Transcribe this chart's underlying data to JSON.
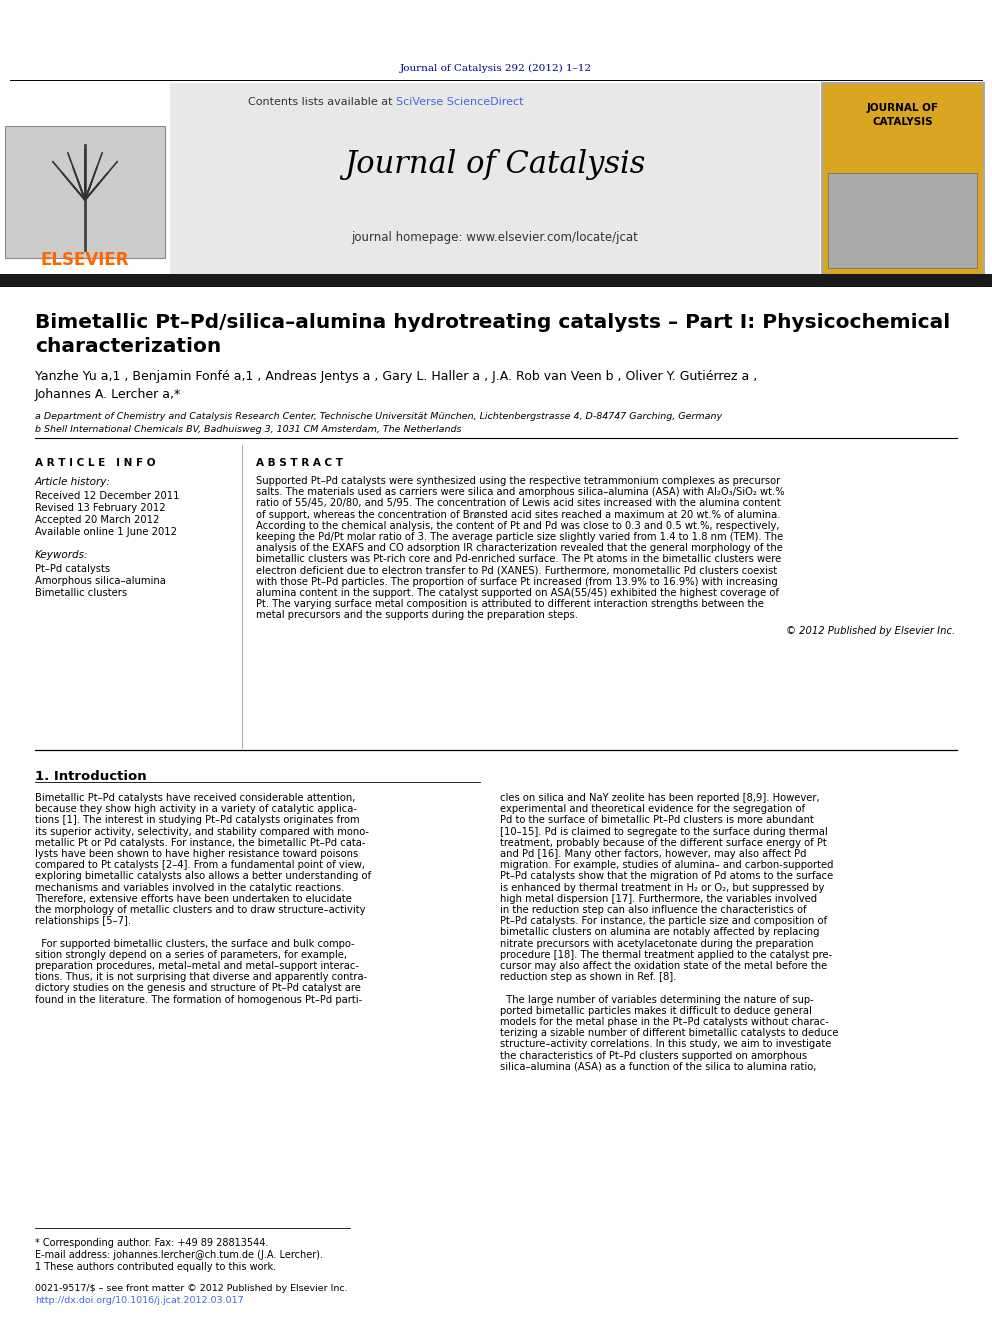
{
  "page_bg": "#ffffff",
  "top_journal_ref": "Journal of Catalysis 292 (2012) 1–12",
  "top_journal_ref_color": "#00008B",
  "header_bg": "#e8e8e8",
  "header_title": "Journal of Catalysis",
  "header_homepage": "journal homepage: www.elsevier.com/locate/jcat",
  "elsevier_color": "#FF6600",
  "sciverse_color": "#4169E1",
  "journal_cover_bg": "#DAA520",
  "black_bar_color": "#1a1a1a",
  "article_title": "Bimetallic Pt–Pd/silica–alumina hydrotreating catalysts – Part I: Physicochemical\ncharacterization",
  "authors_line1": "Yanzhe Yu a,1 , Benjamin Fonfé a,1 , Andreas Jentys a , Gary L. Haller a , J.A. Rob van Veen b , Oliver Y. Gutiérrez a ,",
  "authors_line2": "Johannes A. Lercher a,*",
  "affil_a": "a Department of Chemistry and Catalysis Research Center, Technische Universität München, Lichtenbergstrasse 4, D-84747 Garching, Germany",
  "affil_b": "b Shell International Chemicals BV, Badhuisweg 3, 1031 CM Amsterdam, The Netherlands",
  "article_info_title": "A R T I C L E   I N F O",
  "article_history_title": "Article history:",
  "received": "Received 12 December 2011",
  "revised": "Revised 13 February 2012",
  "accepted": "Accepted 20 March 2012",
  "available": "Available online 1 June 2012",
  "keywords_title": "Keywords:",
  "kw1": "Pt–Pd catalysts",
  "kw2": "Amorphous silica–alumina",
  "kw3": "Bimetallic clusters",
  "abstract_title": "A B S T R A C T",
  "abstract_lines": [
    "Supported Pt–Pd catalysts were synthesized using the respective tetrammonium complexes as precursor",
    "salts. The materials used as carriers were silica and amorphous silica–alumina (ASA) with Al₂O₃/SiO₂ wt.%",
    "ratio of 55/45, 20/80, and 5/95. The concentration of Lewis acid sites increased with the alumina content",
    "of support, whereas the concentration of Brønsted acid sites reached a maximum at 20 wt.% of alumina.",
    "According to the chemical analysis, the content of Pt and Pd was close to 0.3 and 0.5 wt.%, respectively,",
    "keeping the Pd/Pt molar ratio of 3. The average particle size slightly varied from 1.4 to 1.8 nm (TEM). The",
    "analysis of the EXAFS and CO adsorption IR characterization revealed that the general morphology of the",
    "bimetallic clusters was Pt-rich core and Pd-enriched surface. The Pt atoms in the bimetallic clusters were",
    "electron deficient due to electron transfer to Pd (XANES). Furthermore, monometallic Pd clusters coexist",
    "with those Pt–Pd particles. The proportion of surface Pt increased (from 13.9% to 16.9%) with increasing",
    "alumina content in the support. The catalyst supported on ASA(55/45) exhibited the highest coverage of",
    "Pt. The varying surface metal composition is attributed to different interaction strengths between the",
    "metal precursors and the supports during the preparation steps."
  ],
  "copyright": "© 2012 Published by Elsevier Inc.",
  "intro_title": "1. Introduction",
  "intro_col1": [
    "Bimetallic Pt–Pd catalysts have received considerable attention,",
    "because they show high activity in a variety of catalytic applica-",
    "tions [1]. The interest in studying Pt–Pd catalysts originates from",
    "its superior activity, selectivity, and stability compared with mono-",
    "metallic Pt or Pd catalysts. For instance, the bimetallic Pt–Pd cata-",
    "lysts have been shown to have higher resistance toward poisons",
    "compared to Pt catalysts [2–4]. From a fundamental point of view,",
    "exploring bimetallic catalysts also allows a better understanding of",
    "mechanisms and variables involved in the catalytic reactions.",
    "Therefore, extensive efforts have been undertaken to elucidate",
    "the morphology of metallic clusters and to draw structure–activity",
    "relationships [5–7].",
    "",
    "  For supported bimetallic clusters, the surface and bulk compo-",
    "sition strongly depend on a series of parameters, for example,",
    "preparation procedures, metal–metal and metal–support interac-",
    "tions. Thus, it is not surprising that diverse and apparently contra-",
    "dictory studies on the genesis and structure of Pt–Pd catalyst are",
    "found in the literature. The formation of homogenous Pt–Pd parti-"
  ],
  "intro_col2": [
    "cles on silica and NaY zeolite has been reported [8,9]. However,",
    "experimental and theoretical evidence for the segregation of",
    "Pd to the surface of bimetallic Pt–Pd clusters is more abundant",
    "[10–15]. Pd is claimed to segregate to the surface during thermal",
    "treatment, probably because of the different surface energy of Pt",
    "and Pd [16]. Many other factors, however, may also affect Pd",
    "migration. For example, studies of alumina– and carbon-supported",
    "Pt–Pd catalysts show that the migration of Pd atoms to the surface",
    "is enhanced by thermal treatment in H₂ or O₂, but suppressed by",
    "high metal dispersion [17]. Furthermore, the variables involved",
    "in the reduction step can also influence the characteristics of",
    "Pt–Pd catalysts. For instance, the particle size and composition of",
    "bimetallic clusters on alumina are notably affected by replacing",
    "nitrate precursors with acetylacetonate during the preparation",
    "procedure [18]. The thermal treatment applied to the catalyst pre-",
    "cursor may also affect the oxidation state of the metal before the",
    "reduction step as shown in Ref. [8].",
    "",
    "  The large number of variables determining the nature of sup-",
    "ported bimetallic particles makes it difficult to deduce general",
    "models for the metal phase in the Pt–Pd catalysts without charac-",
    "terizing a sizable number of different bimetallic catalysts to deduce",
    "structure–activity correlations. In this study, we aim to investigate",
    "the characteristics of Pt–Pd clusters supported on amorphous",
    "silica–alumina (ASA) as a function of the silica to alumina ratio,"
  ],
  "footnote1": "* Corresponding author. Fax: +49 89 28813544.",
  "footnote2": "E-mail address: johannes.lercher@ch.tum.de (J.A. Lercher).",
  "footnote3": "1 These authors contributed equally to this work.",
  "issn_line": "0021-9517/$ – see front matter © 2012 Published by Elsevier Inc.",
  "doi_line": "http://dx.doi.org/10.1016/j.jcat.2012.03.017"
}
